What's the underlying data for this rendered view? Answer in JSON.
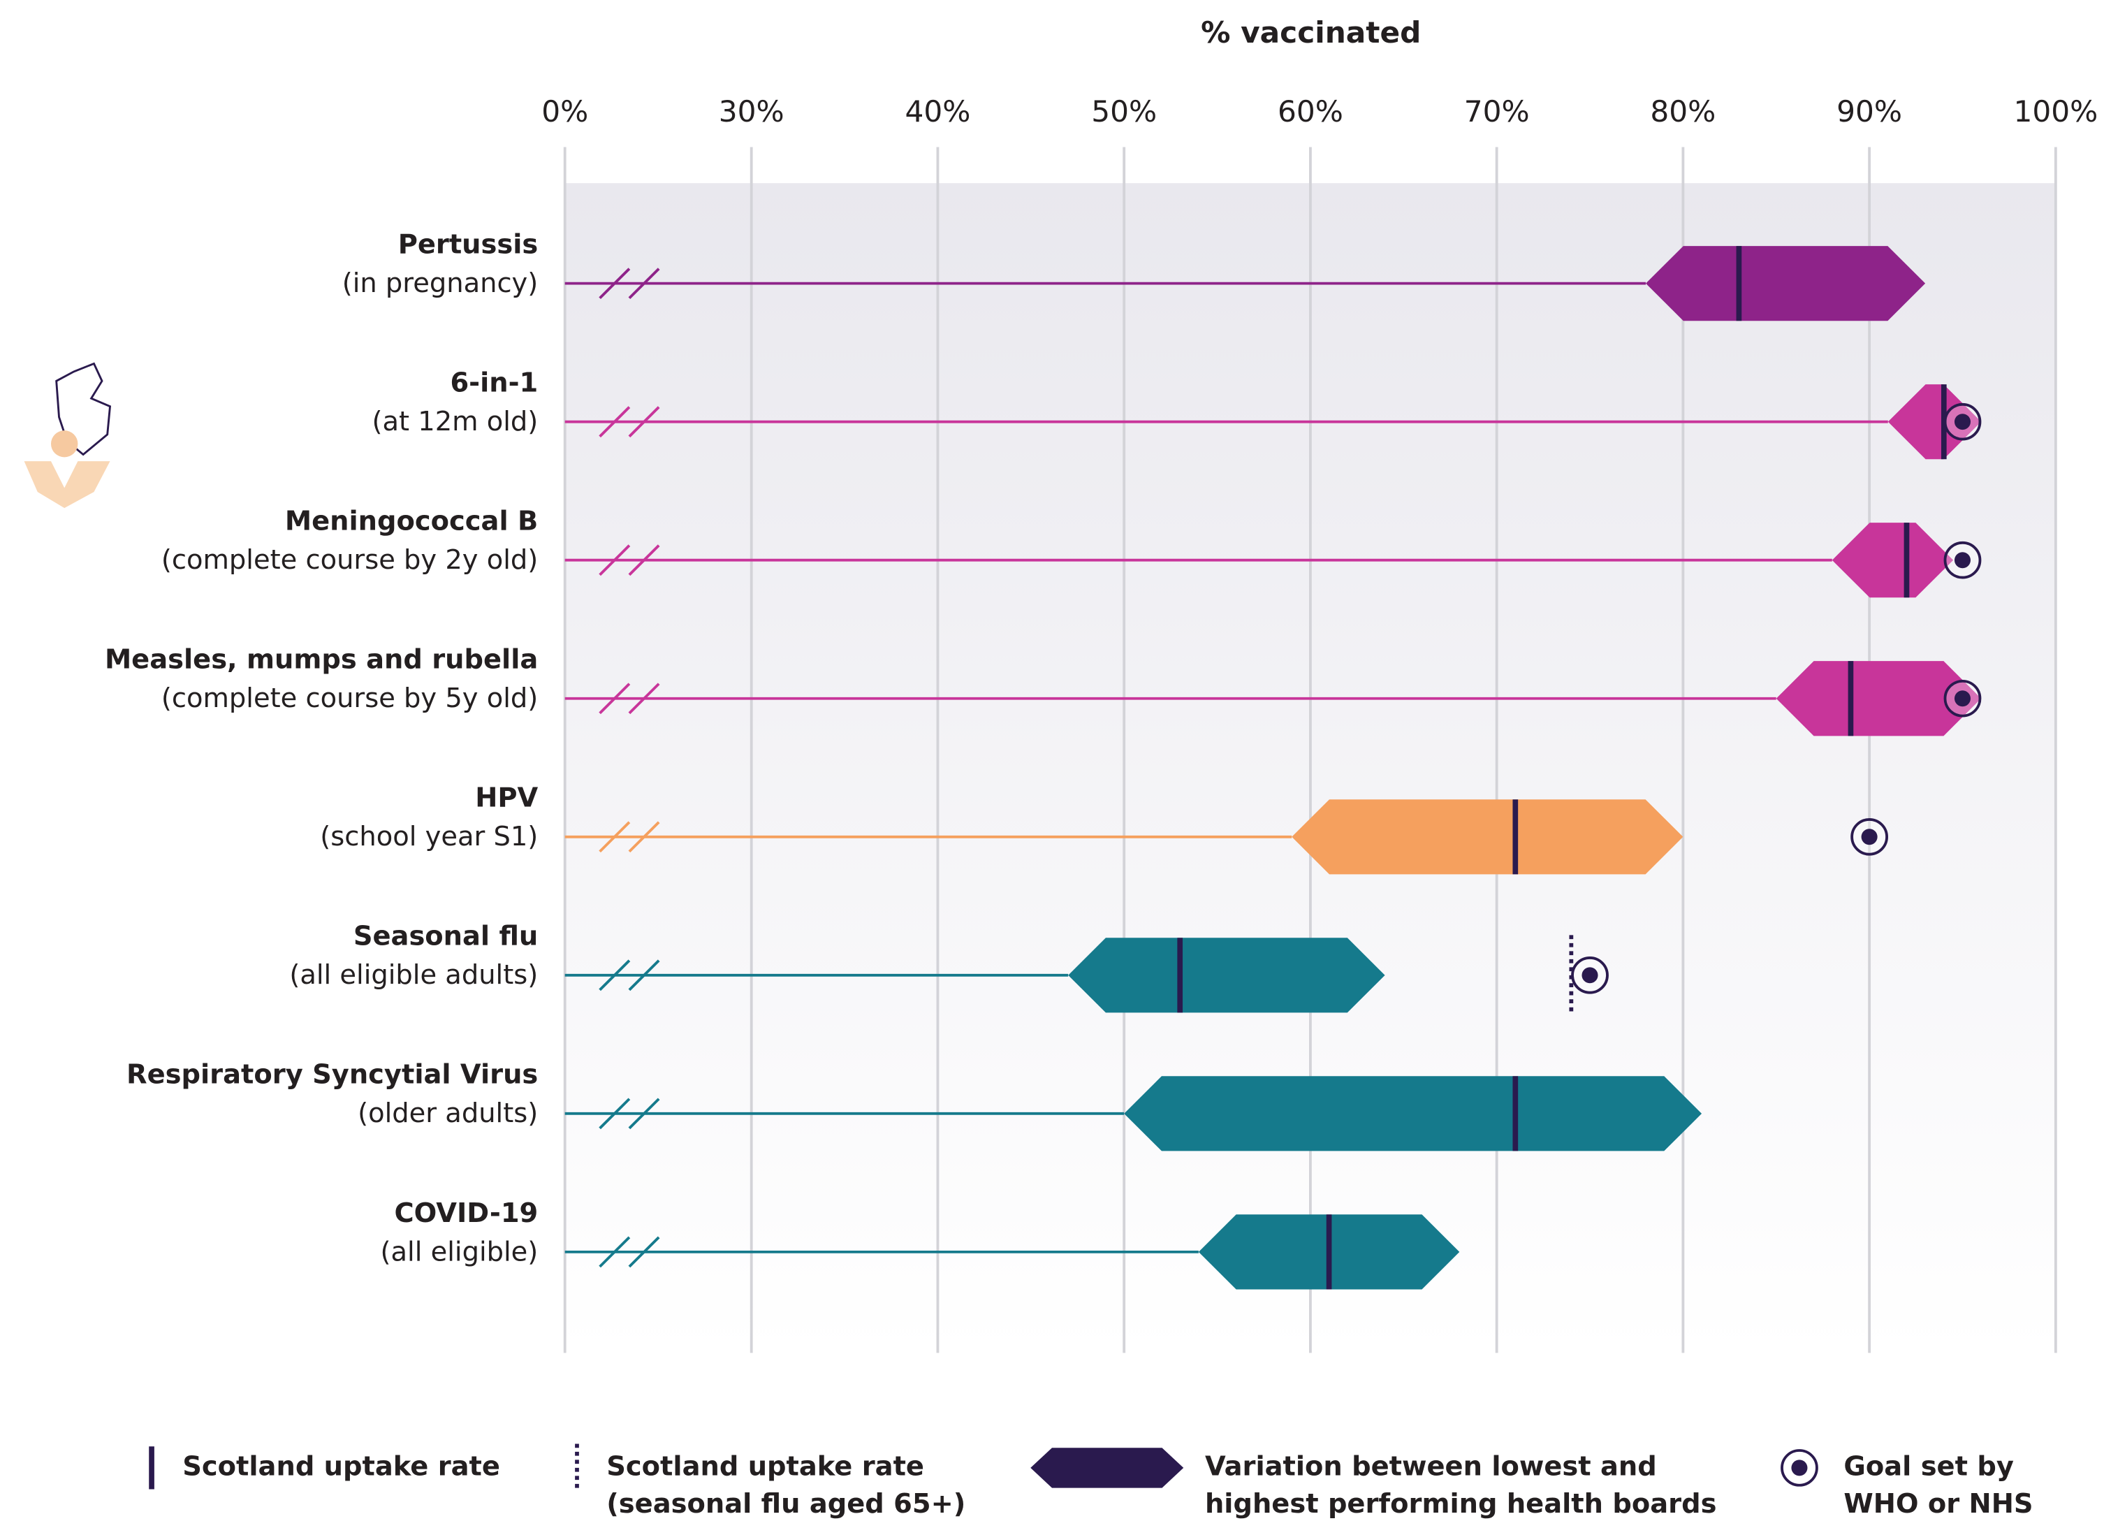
{
  "chart_data": {
    "type": "range",
    "title": "% vaccinated",
    "xlim": [
      0,
      100
    ],
    "axis_break": [
      0,
      30
    ],
    "xticks": [
      {
        "value": 0,
        "label": "0%"
      },
      {
        "value": 30,
        "label": "30%"
      },
      {
        "value": 40,
        "label": "40%"
      },
      {
        "value": 50,
        "label": "50%"
      },
      {
        "value": 60,
        "label": "60%"
      },
      {
        "value": 70,
        "label": "70%"
      },
      {
        "value": 80,
        "label": "80%"
      },
      {
        "value": 90,
        "label": "90%"
      },
      {
        "value": 100,
        "label": "100%"
      }
    ],
    "grid": true,
    "rows": [
      {
        "name": "Pertussis",
        "note": "(in pregnancy)",
        "color": "#8e2389",
        "low": 78,
        "high": 93,
        "uptake": 83
      },
      {
        "name": "6-in-1",
        "note": "(at 12m old)",
        "color": "#c8359a",
        "low": 91,
        "high": 96,
        "uptake": 94,
        "goal": 95
      },
      {
        "name": "Meningococcal B",
        "note": "(complete course by 2y old)",
        "color": "#c8359a",
        "low": 88,
        "high": 94.5,
        "uptake": 92,
        "goal": 95
      },
      {
        "name": "Measles, mumps and rubella",
        "note": "(complete course by 5y old)",
        "color": "#c8359a",
        "low": 85,
        "high": 96,
        "uptake": 89,
        "goal": 95
      },
      {
        "name": "HPV",
        "note": "(school year S1)",
        "color": "#f5a05e",
        "low": 59,
        "high": 80,
        "uptake": 71,
        "goal": 90
      },
      {
        "name": "Seasonal flu",
        "note": "(all eligible adults)",
        "color": "#157a8c",
        "low": 47,
        "high": 64,
        "uptake": 53,
        "uptake_65": 74,
        "goal": 75
      },
      {
        "name": "Respiratory Syncytial Virus",
        "note": "(older adults)",
        "color": "#157a8c",
        "low": 50,
        "high": 81,
        "uptake": 71
      },
      {
        "name": "COVID-19",
        "note": "(all eligible)",
        "color": "#157a8c",
        "low": 54,
        "high": 68,
        "uptake": 61
      }
    ],
    "legend": [
      {
        "lines": [
          "Scotland uptake rate"
        ]
      },
      {
        "lines": [
          "Scotland uptake rate",
          "(seasonal flu aged 65+)"
        ]
      },
      {
        "lines": [
          "Variation between lowest and",
          "highest performing health boards"
        ]
      },
      {
        "lines": [
          "Goal set by",
          "WHO or NHS"
        ]
      }
    ]
  }
}
